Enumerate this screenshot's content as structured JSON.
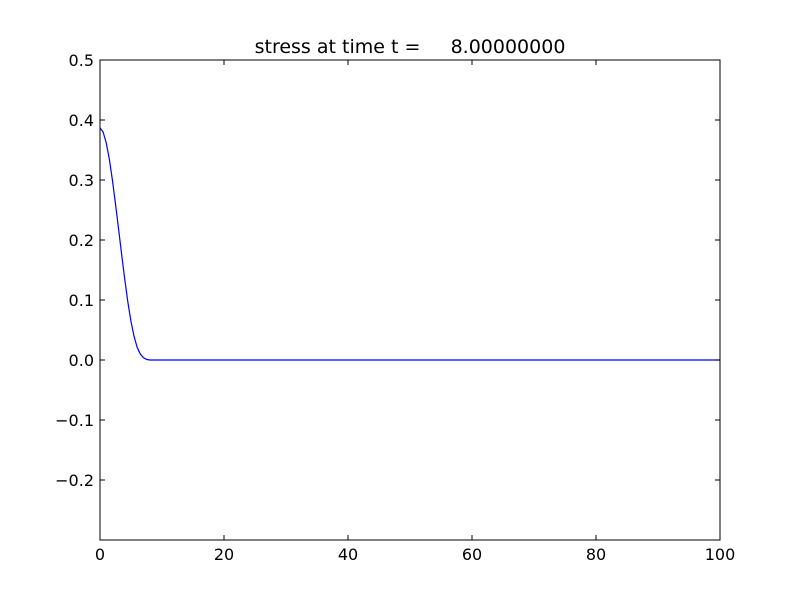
{
  "chart_data": {
    "type": "line",
    "title": "stress at time t =     8.00000000",
    "xlabel": "",
    "ylabel": "",
    "xlim": [
      0,
      100
    ],
    "ylim": [
      -0.3,
      0.5
    ],
    "x_ticks": [
      0,
      20,
      40,
      60,
      80,
      100
    ],
    "x_tick_labels": [
      "0",
      "20",
      "40",
      "60",
      "80",
      "100"
    ],
    "y_ticks": [
      0.5,
      0.4,
      0.3,
      0.2,
      0.1,
      0.0,
      -0.1,
      -0.2
    ],
    "y_tick_labels": [
      "0.5",
      "0.4",
      "0.3",
      "0.2",
      "0.1",
      "0.0",
      "−0.1",
      "−0.2"
    ],
    "grid": false,
    "series": [
      {
        "color": "#0000ff",
        "x": [
          0,
          0.5,
          1,
          1.5,
          2,
          2.5,
          3,
          3.5,
          4,
          4.5,
          5,
          5.5,
          6,
          6.5,
          7,
          7.5,
          8,
          8.5,
          9,
          10,
          20,
          40,
          60,
          80,
          100
        ],
        "y": [
          0.387,
          0.38,
          0.362,
          0.335,
          0.3,
          0.26,
          0.218,
          0.175,
          0.134,
          0.096,
          0.064,
          0.039,
          0.021,
          0.01,
          0.004,
          0.001,
          0.0,
          0.0,
          0.0,
          0.0,
          0.0,
          0.0,
          0.0,
          0.0,
          0.0
        ]
      }
    ]
  }
}
